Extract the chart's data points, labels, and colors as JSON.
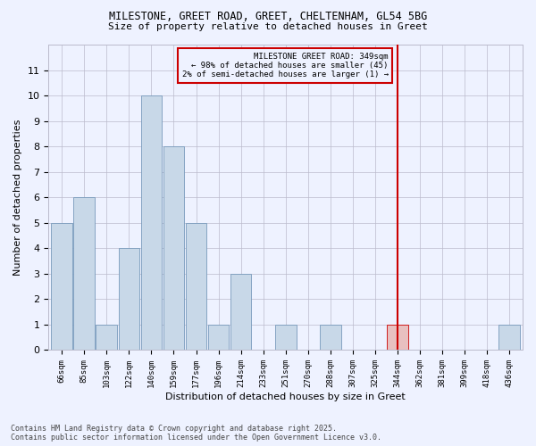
{
  "title1": "MILESTONE, GREET ROAD, GREET, CHELTENHAM, GL54 5BG",
  "title2": "Size of property relative to detached houses in Greet",
  "xlabel": "Distribution of detached houses by size in Greet",
  "ylabel": "Number of detached properties",
  "categories": [
    "66sqm",
    "85sqm",
    "103sqm",
    "122sqm",
    "140sqm",
    "159sqm",
    "177sqm",
    "196sqm",
    "214sqm",
    "233sqm",
    "251sqm",
    "270sqm",
    "288sqm",
    "307sqm",
    "325sqm",
    "344sqm",
    "362sqm",
    "381sqm",
    "399sqm",
    "418sqm",
    "436sqm"
  ],
  "values": [
    5,
    6,
    1,
    4,
    10,
    8,
    5,
    1,
    3,
    0,
    1,
    0,
    1,
    0,
    0,
    1,
    0,
    0,
    0,
    0,
    1
  ],
  "bar_color": "#c8d8e8",
  "bar_edge_color": "#7799bb",
  "highlight_bar_index": 15,
  "highlight_bar_color": "#e8c0c0",
  "highlight_line_color": "#cc0000",
  "annotation_title": "MILESTONE GREET ROAD: 349sqm",
  "annotation_line1": "← 98% of detached houses are smaller (45)",
  "annotation_line2": "2% of semi-detached houses are larger (1) →",
  "annotation_box_color": "#cc0000",
  "ylim": [
    0,
    12
  ],
  "yticks": [
    0,
    1,
    2,
    3,
    4,
    5,
    6,
    7,
    8,
    9,
    10,
    11,
    12
  ],
  "footnote1": "Contains HM Land Registry data © Crown copyright and database right 2025.",
  "footnote2": "Contains public sector information licensed under the Open Government Licence v3.0.",
  "bg_color": "#eef2ff",
  "grid_color": "#bbbbcc"
}
